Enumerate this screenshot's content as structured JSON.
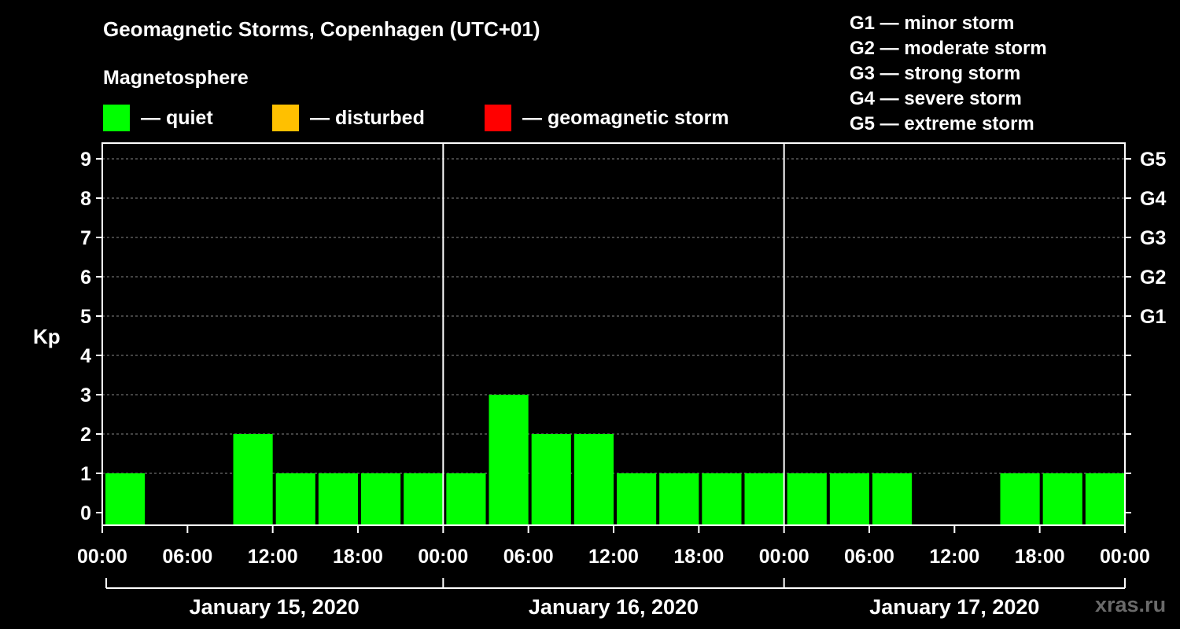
{
  "title": "Geomagnetic Storms, Copenhagen (UTC+01)",
  "subtitle": "Magnetosphere",
  "legend": [
    {
      "color": "#00ff00",
      "label": "— quiet"
    },
    {
      "color": "#ffc000",
      "label": "— disturbed"
    },
    {
      "color": "#ff0000",
      "label": "— geomagnetic storm"
    }
  ],
  "storm_scale": [
    "G1 — minor storm",
    "G2 — moderate storm",
    "G3 — strong storm",
    "G4 — severe storm",
    "G5 — extreme storm"
  ],
  "watermark": "xras.ru",
  "chart_data": {
    "type": "bar",
    "ylabel": "Kp",
    "ylim": [
      0,
      9
    ],
    "y_ticks": [
      "0",
      "1",
      "2",
      "3",
      "4",
      "5",
      "6",
      "7",
      "8",
      "9"
    ],
    "right_ticks": [
      {
        "kp": 5,
        "label": "G1"
      },
      {
        "kp": 6,
        "label": "G2"
      },
      {
        "kp": 7,
        "label": "G3"
      },
      {
        "kp": 8,
        "label": "G4"
      },
      {
        "kp": 9,
        "label": "G5"
      }
    ],
    "x_tick_labels": [
      "00:00",
      "06:00",
      "12:00",
      "18:00",
      "00:00",
      "06:00",
      "12:00",
      "18:00",
      "00:00",
      "06:00",
      "12:00",
      "18:00",
      "00:00"
    ],
    "day_labels": [
      "January 15, 2020",
      "January 16, 2020",
      "January 17, 2020"
    ],
    "grid": true,
    "bar_interval_hours": 3,
    "values": [
      1,
      0,
      0,
      2,
      1,
      1,
      1,
      1,
      1,
      3,
      2,
      2,
      1,
      1,
      1,
      1,
      1,
      1,
      1,
      0,
      0,
      1,
      1,
      1
    ],
    "colors": {
      "quiet": "#00ff00",
      "disturbed": "#ffc000",
      "storm": "#ff0000"
    }
  }
}
